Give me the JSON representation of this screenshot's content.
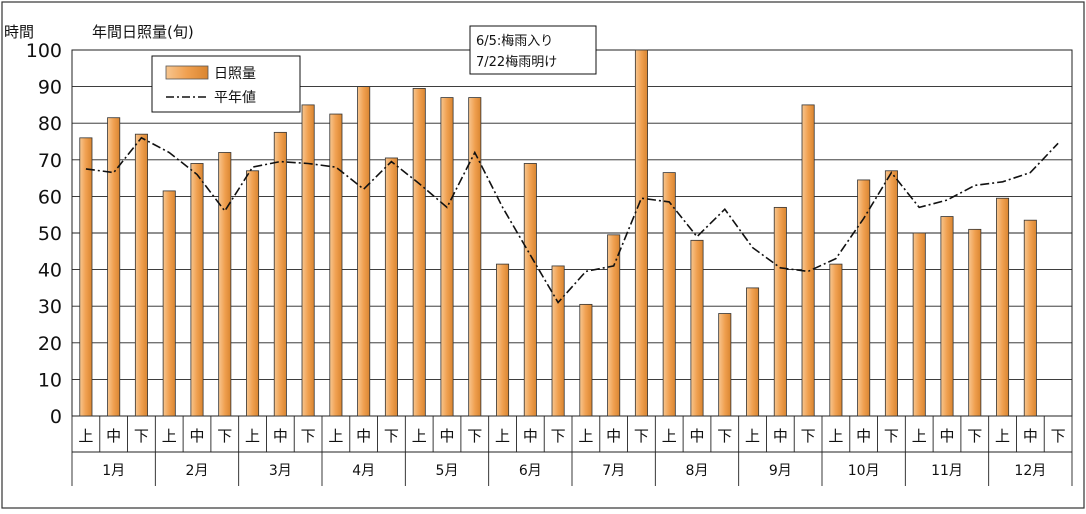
{
  "chart_data": {
    "type": "bar",
    "title": "年間日照量(旬)",
    "ylabel": "時間",
    "ylim": [
      0,
      100
    ],
    "yticks": [
      0,
      10,
      20,
      30,
      40,
      50,
      60,
      70,
      80,
      90,
      100
    ],
    "grid": true,
    "legend_position": "top-left",
    "annotation_lines": [
      "6/5:梅雨入り",
      "7/22梅雨明け"
    ],
    "dekad_labels": [
      "上",
      "中",
      "下"
    ],
    "months": [
      "1月",
      "2月",
      "3月",
      "4月",
      "5月",
      "6月",
      "7月",
      "8月",
      "9月",
      "10月",
      "11月",
      "12月"
    ],
    "categories": [
      "1月 上",
      "1月 中",
      "1月 下",
      "2月 上",
      "2月 中",
      "2月 下",
      "3月 上",
      "3月 中",
      "3月 下",
      "4月 上",
      "4月 中",
      "4月 下",
      "5月 上",
      "5月 中",
      "5月 下",
      "6月 上",
      "6月 中",
      "6月 下",
      "7月 上",
      "7月 中",
      "7月 下",
      "8月 上",
      "8月 中",
      "8月 下",
      "9月 上",
      "9月 中",
      "9月 下",
      "10月 上",
      "10月 中",
      "10月 下",
      "11月 上",
      "11月 中",
      "11月 下",
      "12月 上",
      "12月 中",
      "12月 下"
    ],
    "series": [
      {
        "name": "日照量",
        "type": "bar",
        "color": "#F0A050",
        "values": [
          76,
          81.5,
          77,
          61.5,
          69,
          72,
          67,
          77.5,
          85,
          82.5,
          90,
          70.5,
          89.5,
          87,
          87,
          41.5,
          69,
          41,
          30.5,
          49.5,
          100,
          66.5,
          48,
          28,
          35,
          57,
          85,
          41.5,
          64.5,
          67,
          50,
          54.5,
          51,
          59.5,
          53.5,
          null
        ]
      },
      {
        "name": "平年値",
        "type": "line",
        "color": "#111111",
        "style": "dash-dot",
        "values": [
          67.5,
          66.5,
          76,
          72,
          66,
          56,
          68,
          69.5,
          69,
          68,
          62,
          69.5,
          63.5,
          57,
          72,
          57,
          44,
          31,
          39.5,
          41,
          59.5,
          58.5,
          49,
          56.5,
          46,
          40.5,
          39.5,
          43,
          54,
          66.5,
          57,
          59,
          63,
          64,
          66.5,
          74.5
        ]
      }
    ]
  }
}
